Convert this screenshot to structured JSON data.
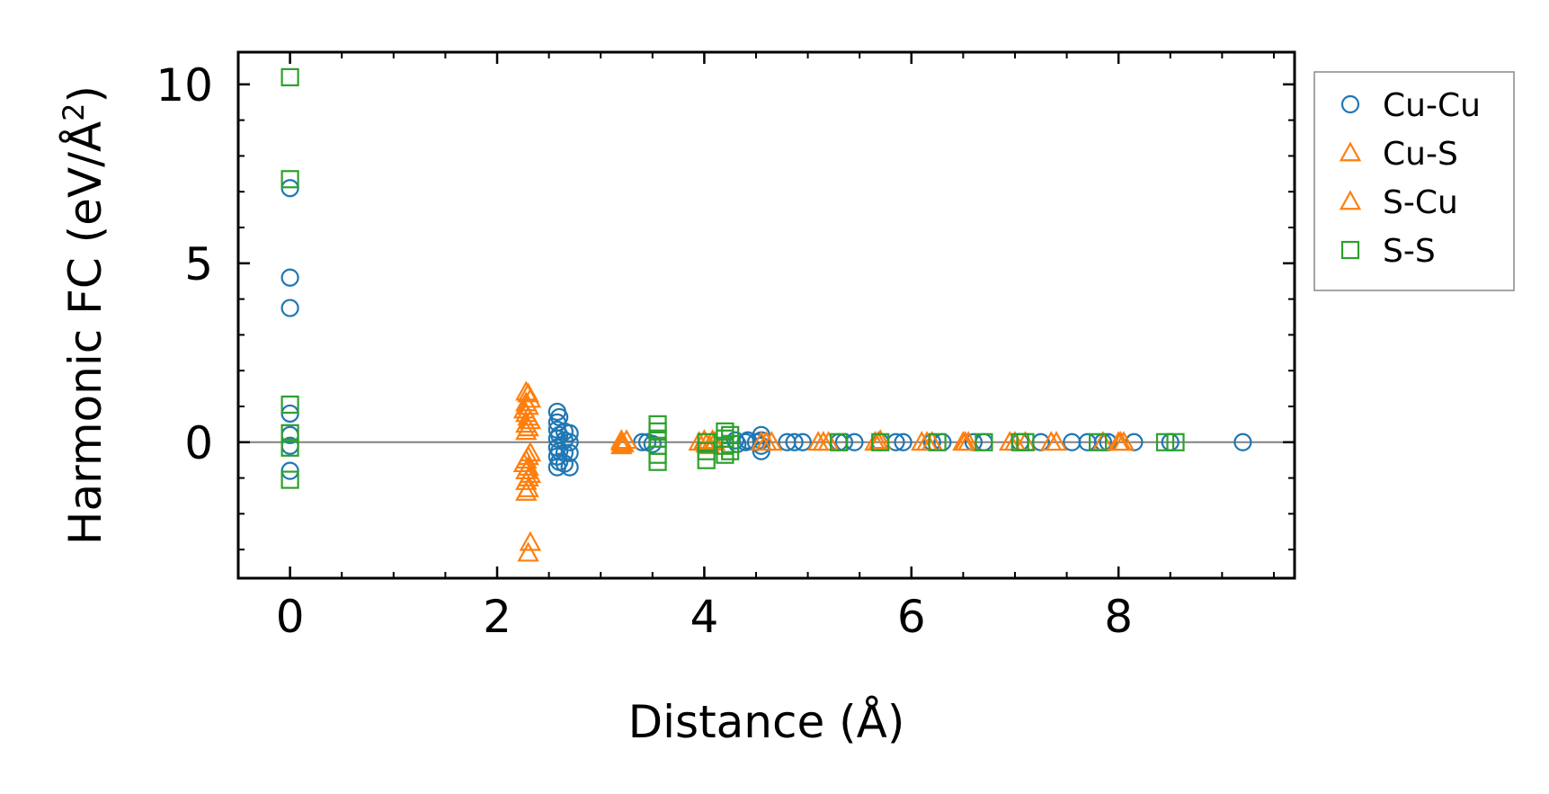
{
  "chart_data": {
    "type": "scatter",
    "title": "",
    "xlabel": "Distance (Å)",
    "ylabel": "Harmonic FC (eV/Å",
    "ylabel_sup": "2",
    "ylabel_tail": ")",
    "xlim": [
      -0.5,
      9.7
    ],
    "ylim": [
      -3.8,
      10.9
    ],
    "xticks": [
      0,
      2,
      4,
      6,
      8
    ],
    "xtick_labels": [
      "0",
      "2",
      "4",
      "6",
      "8"
    ],
    "yticks": [
      0,
      5,
      10
    ],
    "ytick_labels": [
      "0",
      "5",
      "10"
    ],
    "grid": false,
    "zero_line": true,
    "legend_position": "right outside, top",
    "series": [
      {
        "name": "Cu-Cu",
        "marker": "circle",
        "color": "#1f77b4",
        "points": [
          [
            0,
            7.1
          ],
          [
            0,
            4.6
          ],
          [
            0,
            3.75
          ],
          [
            0,
            0.8
          ],
          [
            0,
            0.2
          ],
          [
            0,
            -0.1
          ],
          [
            0,
            -0.8
          ],
          [
            2.58,
            0.85
          ],
          [
            2.58,
            0.55
          ],
          [
            2.58,
            0.35
          ],
          [
            2.58,
            0.1
          ],
          [
            2.58,
            -0.15
          ],
          [
            2.58,
            -0.4
          ],
          [
            2.58,
            -0.7
          ],
          [
            2.6,
            0.7
          ],
          [
            2.6,
            0.2
          ],
          [
            2.6,
            -0.25
          ],
          [
            2.6,
            -0.55
          ],
          [
            2.65,
            0.3
          ],
          [
            2.65,
            0.05
          ],
          [
            2.65,
            -0.3
          ],
          [
            2.65,
            -0.6
          ],
          [
            2.7,
            0.25
          ],
          [
            2.7,
            0.0
          ],
          [
            2.7,
            -0.3
          ],
          [
            2.7,
            -0.7
          ],
          [
            3.4,
            0.0
          ],
          [
            3.45,
            0.0
          ],
          [
            3.5,
            -0.05
          ],
          [
            4.3,
            0.05
          ],
          [
            4.32,
            -0.05
          ],
          [
            4.4,
            0.0
          ],
          [
            4.42,
            0.05
          ],
          [
            4.5,
            0.0
          ],
          [
            4.55,
            0.2
          ],
          [
            4.55,
            0.05
          ],
          [
            4.55,
            -0.1
          ],
          [
            4.55,
            -0.25
          ],
          [
            4.8,
            0.0
          ],
          [
            4.87,
            0.0
          ],
          [
            4.95,
            0.0
          ],
          [
            5.3,
            0.0
          ],
          [
            5.35,
            0.0
          ],
          [
            5.45,
            0.0
          ],
          [
            5.7,
            0.0
          ],
          [
            5.85,
            0.0
          ],
          [
            5.92,
            0.0
          ],
          [
            6.2,
            0.0
          ],
          [
            6.3,
            0.0
          ],
          [
            6.6,
            0.0
          ],
          [
            6.7,
            0.0
          ],
          [
            7.05,
            0.0
          ],
          [
            7.25,
            0.0
          ],
          [
            7.55,
            0.0
          ],
          [
            7.7,
            0.0
          ],
          [
            7.85,
            0.0
          ],
          [
            7.9,
            0.0
          ],
          [
            8.15,
            0.0
          ],
          [
            8.5,
            0.0
          ],
          [
            9.2,
            0.0
          ]
        ]
      },
      {
        "name": "Cu-S",
        "marker": "triangle",
        "color": "#ff7f0e",
        "points": [
          [
            2.28,
            1.4
          ],
          [
            2.28,
            1.1
          ],
          [
            2.28,
            0.8
          ],
          [
            2.28,
            0.5
          ],
          [
            2.28,
            0.3
          ],
          [
            2.28,
            -0.5
          ],
          [
            2.28,
            -0.8
          ],
          [
            2.28,
            -1.1
          ],
          [
            2.28,
            -1.4
          ],
          [
            2.32,
            1.2
          ],
          [
            2.32,
            0.6
          ],
          [
            2.32,
            -0.3
          ],
          [
            2.32,
            -0.9
          ],
          [
            2.32,
            -2.8
          ],
          [
            2.3,
            -3.1
          ],
          [
            3.2,
            0.0
          ],
          [
            3.22,
            -0.05
          ],
          [
            3.25,
            0.05
          ],
          [
            3.95,
            0.0
          ],
          [
            4.0,
            0.05
          ],
          [
            4.05,
            -0.1
          ],
          [
            4.1,
            0.0
          ],
          [
            4.55,
            0.0
          ],
          [
            4.65,
            0.0
          ],
          [
            5.1,
            0.0
          ],
          [
            5.2,
            0.0
          ],
          [
            5.65,
            0.0
          ],
          [
            5.7,
            0.05
          ],
          [
            6.1,
            0.0
          ],
          [
            6.2,
            0.0
          ],
          [
            6.5,
            0.0
          ],
          [
            6.55,
            0.0
          ],
          [
            6.95,
            0.0
          ],
          [
            7.1,
            0.0
          ],
          [
            7.35,
            0.0
          ],
          [
            7.85,
            0.0
          ],
          [
            8.0,
            0.0
          ],
          [
            8.05,
            0.0
          ]
        ]
      },
      {
        "name": "S-Cu",
        "marker": "triangle",
        "color": "#ff7f0e",
        "points": [
          [
            2.3,
            1.35
          ],
          [
            2.3,
            1.0
          ],
          [
            2.3,
            0.7
          ],
          [
            2.3,
            0.4
          ],
          [
            2.3,
            -0.4
          ],
          [
            2.3,
            -0.7
          ],
          [
            2.3,
            -1.0
          ],
          [
            2.3,
            -1.3
          ],
          [
            2.26,
            0.9
          ],
          [
            2.26,
            -0.6
          ],
          [
            3.2,
            0.05
          ],
          [
            3.2,
            -0.1
          ],
          [
            4.02,
            -0.05
          ],
          [
            4.08,
            0.05
          ],
          [
            4.6,
            0.0
          ],
          [
            5.15,
            0.0
          ],
          [
            5.68,
            0.0
          ],
          [
            6.15,
            0.0
          ],
          [
            6.52,
            0.0
          ],
          [
            7.0,
            0.0
          ],
          [
            7.4,
            0.0
          ],
          [
            8.02,
            0.0
          ]
        ]
      },
      {
        "name": "S-S",
        "marker": "square",
        "color": "#2ca02c",
        "points": [
          [
            0,
            10.2
          ],
          [
            0,
            7.35
          ],
          [
            0,
            1.05
          ],
          [
            0,
            0.25
          ],
          [
            0,
            -0.15
          ],
          [
            0,
            -1.05
          ],
          [
            3.55,
            0.5
          ],
          [
            3.55,
            0.3
          ],
          [
            3.55,
            0.1
          ],
          [
            3.55,
            -0.1
          ],
          [
            3.55,
            -0.35
          ],
          [
            3.55,
            -0.55
          ],
          [
            4.02,
            0.0
          ],
          [
            4.02,
            -0.25
          ],
          [
            4.02,
            -0.5
          ],
          [
            4.2,
            0.3
          ],
          [
            4.2,
            0.1
          ],
          [
            4.2,
            -0.1
          ],
          [
            4.2,
            -0.35
          ],
          [
            4.25,
            0.2
          ],
          [
            4.25,
            -0.05
          ],
          [
            4.25,
            -0.25
          ],
          [
            5.3,
            0.0
          ],
          [
            5.7,
            0.0
          ],
          [
            6.25,
            0.0
          ],
          [
            6.7,
            0.0
          ],
          [
            7.05,
            0.0
          ],
          [
            7.1,
            0.0
          ],
          [
            7.8,
            0.0
          ],
          [
            8.45,
            0.0
          ],
          [
            8.55,
            0.0
          ]
        ]
      }
    ]
  }
}
